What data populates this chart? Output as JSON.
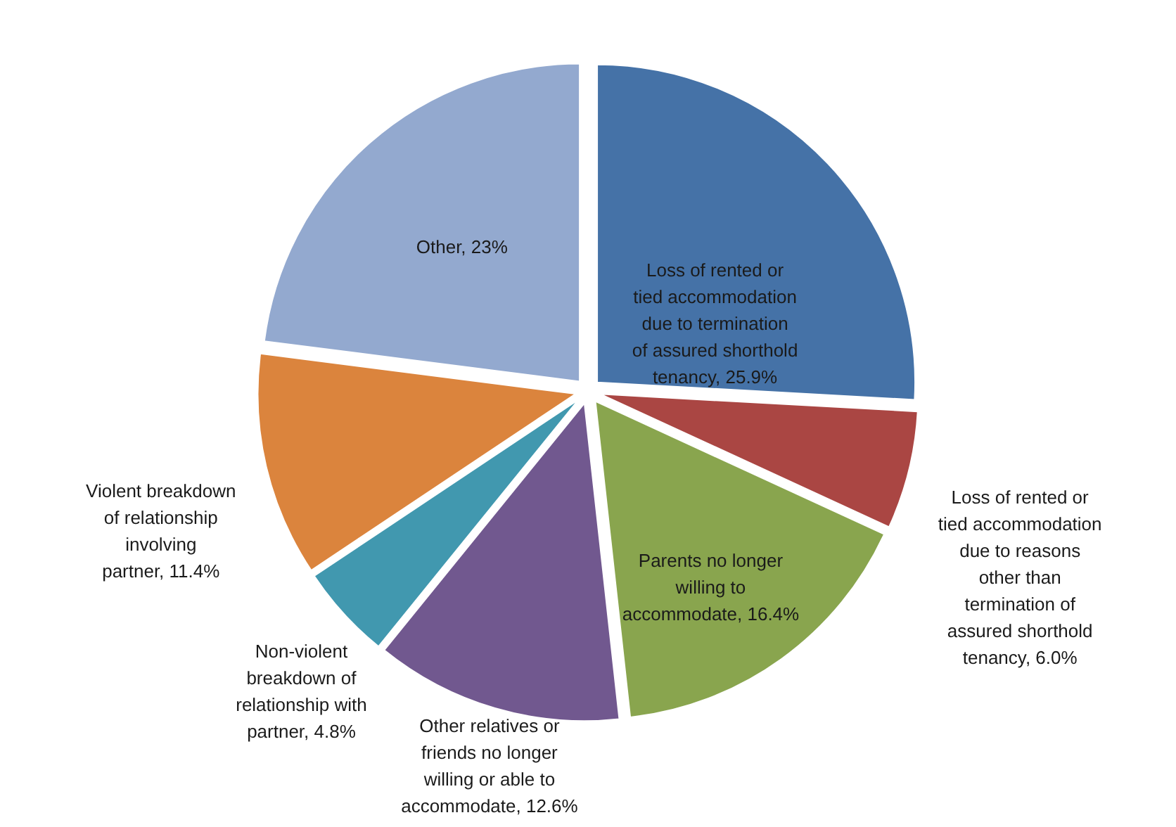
{
  "chart_data": {
    "type": "pie",
    "categories": [
      "Loss of rented or tied accommodation due to termination of assured shorthold tenancy",
      "Loss of rented or tied accommodation due to reasons other than termination of assured shorthold tenancy",
      "Parents no longer willing to accommodate",
      "Other relatives or friends no longer willing or able to accommodate",
      "Non-violent breakdown of relationship with partner",
      "Violent breakdown of relationship involving partner",
      "Other"
    ],
    "values": [
      25.9,
      6.0,
      16.4,
      12.6,
      4.8,
      11.4,
      23
    ],
    "value_labels": [
      "25.9%",
      "6.0%",
      "16.4%",
      "12.6%",
      "4.8%",
      "11.4%",
      "23%"
    ],
    "colors": [
      "#4572a7",
      "#aa4643",
      "#89a54e",
      "#71588f",
      "#4198af",
      "#db843d",
      "#93a9cf"
    ]
  }
}
